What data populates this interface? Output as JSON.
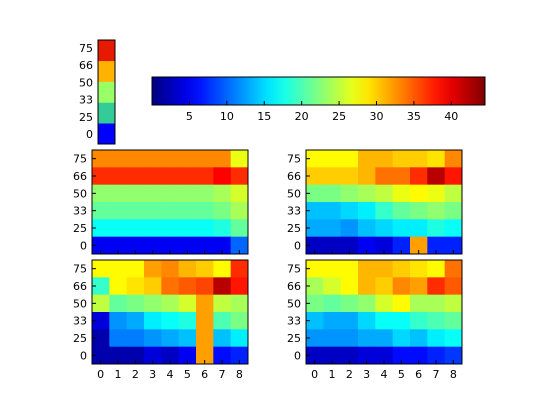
{
  "chart_data": [
    {
      "type": "colorbar",
      "orientation": "vertical",
      "colors": [
        "#0000ff",
        "#33cc99",
        "#99ff66",
        "#ffb300",
        "#e61a00"
      ],
      "ticks": [
        "75",
        "66",
        "50",
        "33",
        "25",
        "0"
      ]
    },
    {
      "type": "colorbar",
      "orientation": "horizontal",
      "colormap": "jet",
      "range": [
        0,
        44.5
      ],
      "ticks": [
        "5",
        "10",
        "15",
        "20",
        "25",
        "30",
        "35",
        "40"
      ],
      "tick_values": [
        5,
        10,
        15,
        20,
        25,
        30,
        35,
        40
      ]
    },
    {
      "type": "heatmap",
      "position": "top-left",
      "x": [
        "0",
        "1",
        "2",
        "3",
        "4",
        "5",
        "6",
        "7",
        "8"
      ],
      "y": [
        "75",
        "66",
        "50",
        "33",
        "25",
        "0"
      ],
      "show_xticks": false,
      "values": [
        [
          33,
          33,
          33,
          33,
          33,
          33,
          33,
          33,
          27
        ],
        [
          37,
          37,
          37,
          37,
          37,
          37,
          37,
          39,
          37
        ],
        [
          23,
          23,
          23,
          23,
          23,
          23,
          23,
          24,
          26
        ],
        [
          21,
          21,
          21,
          21,
          21,
          21,
          21,
          22,
          24
        ],
        [
          17,
          17,
          17,
          17,
          17,
          17,
          17,
          18,
          21
        ],
        [
          5,
          5,
          5,
          5,
          5,
          5,
          5,
          5,
          10
        ]
      ]
    },
    {
      "type": "heatmap",
      "position": "top-right",
      "x": [
        "0",
        "1",
        "2",
        "3",
        "4",
        "5",
        "6",
        "7",
        "8"
      ],
      "y": [
        "75",
        "66",
        "50",
        "33",
        "25",
        "0"
      ],
      "show_xticks": false,
      "values": [
        [
          28,
          28,
          28,
          31,
          31,
          30,
          30,
          29,
          33
        ],
        [
          30,
          30,
          30,
          31,
          34,
          34,
          37,
          42,
          38
        ],
        [
          22,
          22,
          23,
          24,
          25,
          27,
          28,
          27,
          25
        ],
        [
          14,
          14,
          15,
          16,
          19,
          21,
          22,
          23,
          22
        ],
        [
          13,
          13,
          12,
          14,
          15,
          16,
          16,
          18,
          17
        ],
        [
          3,
          3,
          3,
          5,
          4,
          7,
          32,
          7,
          7
        ]
      ]
    },
    {
      "type": "heatmap",
      "position": "bottom-left",
      "x": [
        "0",
        "1",
        "2",
        "3",
        "4",
        "5",
        "6",
        "7",
        "8"
      ],
      "y": [
        "75",
        "66",
        "50",
        "33",
        "25",
        "0"
      ],
      "show_xticks": true,
      "values": [
        [
          28,
          28,
          28,
          32,
          33,
          31,
          30,
          28,
          37
        ],
        [
          19,
          28,
          29,
          30,
          34,
          35,
          36,
          42,
          38
        ],
        [
          25,
          21,
          22,
          23,
          24,
          26,
          32,
          25,
          24
        ],
        [
          4,
          12,
          13,
          16,
          17,
          18,
          32,
          20,
          22
        ],
        [
          2,
          11,
          11,
          12,
          13,
          14,
          32,
          14,
          16
        ],
        [
          2,
          2,
          2,
          4,
          3,
          5,
          32,
          6,
          7
        ]
      ]
    },
    {
      "type": "heatmap",
      "position": "bottom-right",
      "x": [
        "0",
        "1",
        "2",
        "3",
        "4",
        "5",
        "6",
        "7",
        "8"
      ],
      "y": [
        "75",
        "66",
        "50",
        "33",
        "25",
        "0"
      ],
      "show_xticks": true,
      "values": [
        [
          28,
          28,
          28,
          31,
          31,
          30,
          29,
          28,
          34
        ],
        [
          24,
          26,
          28,
          31,
          30,
          33,
          32,
          37,
          35
        ],
        [
          22,
          21,
          22,
          23,
          26,
          28,
          24,
          24,
          25
        ],
        [
          14,
          13,
          13,
          15,
          17,
          17,
          19,
          20,
          21
        ],
        [
          12,
          12,
          12,
          13,
          13,
          15,
          14,
          16,
          17
        ],
        [
          3,
          3,
          3,
          4,
          4,
          6,
          6,
          7,
          8
        ]
      ]
    }
  ]
}
